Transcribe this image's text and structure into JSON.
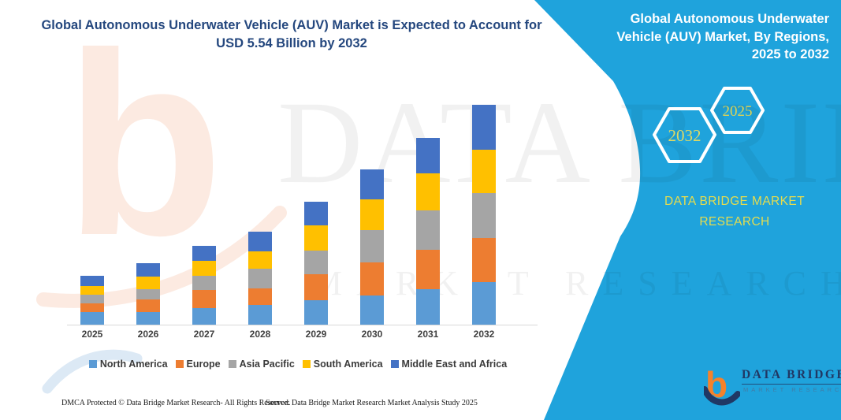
{
  "header": {
    "title": "Global Autonomous Underwater Vehicle (AUV) Market is Expected to Account for USD 5.54 Billion by 2032"
  },
  "side_panel": {
    "title": "Global Autonomous Underwater Vehicle (AUV) Market, By Regions, 2025 to 2032",
    "hexagons": [
      {
        "label": "2032"
      },
      {
        "label": "2025"
      }
    ],
    "brand_caption": "DATA BRIDGE MARKET RESEARCH",
    "background_color": "#1FA3DC",
    "caption_color": "#E5DC4E",
    "hexagon_outline_color": "#FFFFFF"
  },
  "watermark": {
    "b_glyph": "b",
    "primary": "DATA BRIDGE",
    "secondary": "MARKET RESEARCH"
  },
  "logo": {
    "b_glyph": "b",
    "name": "DATA BRIDGE",
    "subtitle": "MARKET RESEARCH",
    "b_color": "#F5822A",
    "swoosh_color": "#203864"
  },
  "footer": {
    "left": "DMCA Protected © Data Bridge Market Research-  All Rights Reserved.",
    "right": "Source: Data Bridge Market Research  Market Analysis Study 2025"
  },
  "chart_data": {
    "type": "bar",
    "subtype": "stacked",
    "title": "Global Autonomous Underwater Vehicle (AUV) Market is Expected to Account for USD 5.54 Billion by 2032",
    "unit": "USD Billion",
    "categories": [
      "2025",
      "2026",
      "2027",
      "2028",
      "2029",
      "2030",
      "2031",
      "2032"
    ],
    "series": [
      {
        "name": "North America",
        "color": "#5B9BD5",
        "values": [
          0.32,
          0.32,
          0.42,
          0.5,
          0.62,
          0.73,
          0.89,
          1.07
        ]
      },
      {
        "name": "Europe",
        "color": "#ED7D31",
        "values": [
          0.22,
          0.32,
          0.46,
          0.42,
          0.66,
          0.83,
          0.99,
          1.11
        ]
      },
      {
        "name": "Asia Pacific",
        "color": "#A5A5A5",
        "values": [
          0.22,
          0.26,
          0.36,
          0.5,
          0.6,
          0.81,
          0.99,
          1.13
        ]
      },
      {
        "name": "South America",
        "color": "#FFC000",
        "values": [
          0.22,
          0.32,
          0.38,
          0.44,
          0.64,
          0.77,
          0.93,
          1.09
        ]
      },
      {
        "name": "Middle East and Africa",
        "color": "#4472C4",
        "values": [
          0.26,
          0.34,
          0.38,
          0.5,
          0.6,
          0.75,
          0.89,
          1.14
        ]
      }
    ],
    "totals": [
      1.24,
      1.56,
      2.0,
      2.36,
      3.12,
      3.89,
      4.69,
      5.54
    ],
    "xlabel": "",
    "ylabel": "",
    "ylim": [
      0,
      5.6
    ],
    "gridlines": false,
    "y_axis_shown": false,
    "legend_position": "bottom",
    "axis_label_color": "#404040",
    "axis_line_color": "#D9D9D9"
  }
}
